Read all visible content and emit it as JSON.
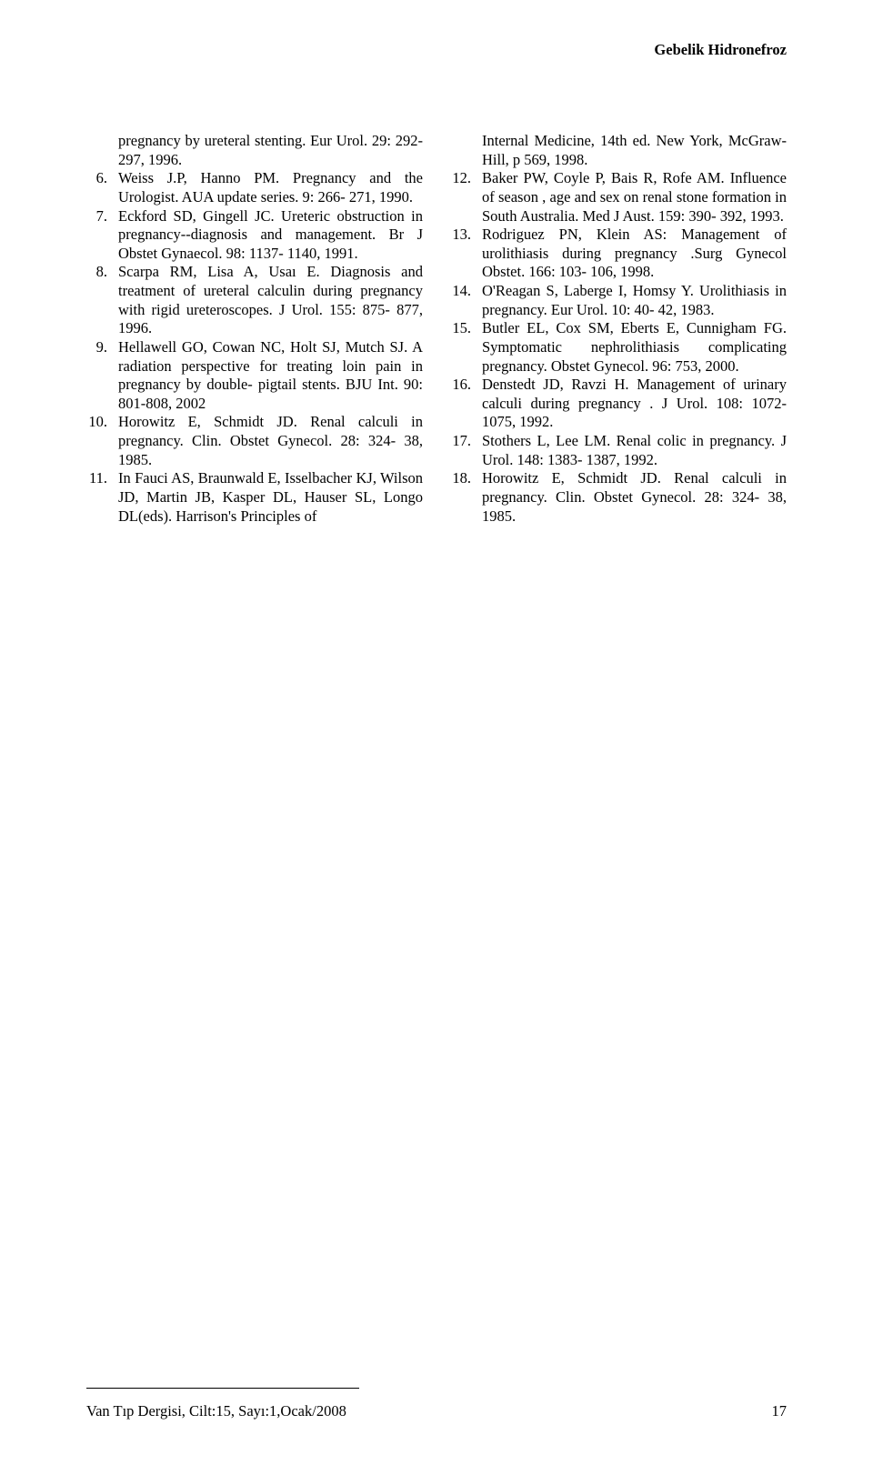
{
  "header": {
    "title": "Gebelik Hidronefroz"
  },
  "leftColumn": {
    "continuation": "pregnancy by ureteral stenting. Eur Urol. 29: 292- 297, 1996.",
    "refs": [
      {
        "num": "6.",
        "text": "Weiss J.P, Hanno PM. Pregnancy and the Urologist. AUA update series. 9: 266- 271, 1990."
      },
      {
        "num": "7.",
        "text": "Eckford SD, Gingell JC. Ureteric obstruction in pregnancy--diagnosis and management. Br J Obstet Gynaecol. 98: 1137- 1140, 1991."
      },
      {
        "num": "8.",
        "text": "Scarpa RM, Lisa A, Usaı E. Diagnosis and treatment of ureteral calculin during pregnancy with rigid ureteroscopes. J Urol. 155: 875- 877, 1996."
      },
      {
        "num": "9.",
        "text": "Hellawell GO, Cowan NC, Holt SJ, Mutch SJ. A radiation perspective for treating loin pain in pregnancy by double- pigtail stents. BJU Int. 90: 801-808, 2002"
      },
      {
        "num": "10.",
        "text": "Horowitz E, Schmidt JD. Renal calculi in pregnancy. Clin. Obstet Gynecol. 28: 324- 38, 1985."
      },
      {
        "num": "11.",
        "text": "In Fauci AS, Braunwald E, Isselbacher KJ, Wilson JD, Martin JB, Kasper DL, Hauser SL, Longo DL(eds). Harrison's Principles of"
      }
    ]
  },
  "rightColumn": {
    "continuation": "Internal Medicine, 14th ed. New York, McGraw-Hill, p 569, 1998.",
    "refs": [
      {
        "num": "12.",
        "text": "Baker PW, Coyle P, Bais R, Rofe AM. Influence of season , age and sex on renal stone formation in South Australia. Med J Aust. 159: 390- 392, 1993."
      },
      {
        "num": "13.",
        "text": "Rodriguez PN, Klein AS: Management of urolithiasis during pregnancy .Surg Gynecol Obstet. 166: 103- 106, 1998."
      },
      {
        "num": "14.",
        "text": "O'Reagan S, Laberge I, Homsy Y. Urolithiasis in pregnancy. Eur Urol. 10: 40- 42, 1983."
      },
      {
        "num": "15.",
        "text": "Butler EL, Cox SM, Eberts E, Cunnigham FG. Symptomatic nephrolithiasis complicating pregnancy. Obstet Gynecol. 96: 753, 2000."
      },
      {
        "num": "16.",
        "text": "Denstedt JD, Ravzi H. Management of urinary calculi during pregnancy . J Urol. 108: 1072- 1075, 1992."
      },
      {
        "num": "17.",
        "text": "Stothers L, Lee LM. Renal colic in pregnancy. J Urol. 148: 1383- 1387, 1992."
      },
      {
        "num": "18.",
        "text": "Horowitz E, Schmidt JD. Renal calculi in pregnancy. Clin. Obstet Gynecol. 28: 324- 38, 1985."
      }
    ]
  },
  "footer": {
    "journal": "Van Tıp Dergisi, Cilt:15, Sayı:1,Ocak/2008",
    "page": "17"
  }
}
